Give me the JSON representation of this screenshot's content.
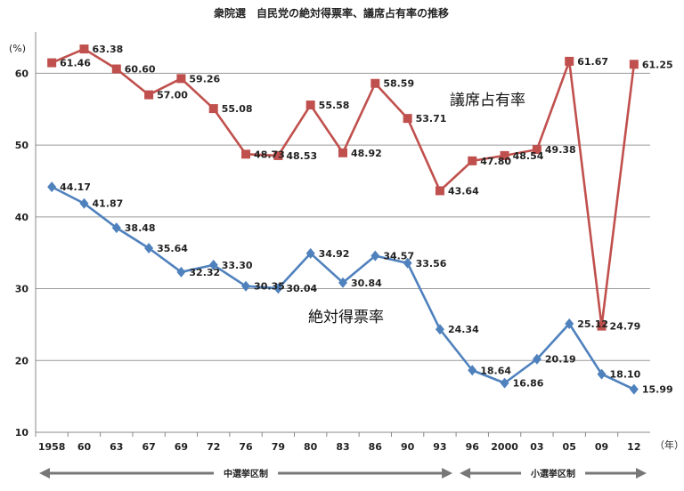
{
  "chart_data": {
    "type": "line",
    "title": "衆院選　自民党の絶対得票率、議席占有率の推移",
    "ylabel": "(%)",
    "xunit": "（年）",
    "ylim": [
      10,
      65
    ],
    "yticks": [
      10,
      20,
      30,
      40,
      50,
      60
    ],
    "grid": true,
    "categories": [
      "1958",
      "60",
      "63",
      "67",
      "69",
      "72",
      "76",
      "79",
      "80",
      "83",
      "86",
      "90",
      "93",
      "96",
      "2000",
      "03",
      "05",
      "09",
      "12"
    ],
    "series": [
      {
        "name": "議席占有率",
        "color": "#c0504d",
        "marker": "square",
        "values": [
          61.46,
          63.38,
          60.6,
          57.0,
          59.26,
          55.08,
          48.73,
          48.53,
          55.58,
          48.92,
          58.59,
          53.71,
          43.64,
          47.8,
          48.54,
          49.38,
          61.67,
          24.79,
          61.25
        ]
      },
      {
        "name": "絶対得票率",
        "color": "#4f81bd",
        "marker": "diamond",
        "values": [
          44.17,
          41.87,
          38.48,
          35.64,
          32.32,
          33.3,
          30.35,
          30.04,
          34.92,
          30.84,
          34.57,
          33.56,
          24.34,
          18.64,
          16.86,
          20.19,
          25.12,
          18.1,
          15.99
        ]
      }
    ],
    "eras": [
      {
        "label": "中選挙区制",
        "from": 0,
        "to": 12
      },
      {
        "label": "小選挙区制",
        "from": 13,
        "to": 18
      }
    ]
  }
}
